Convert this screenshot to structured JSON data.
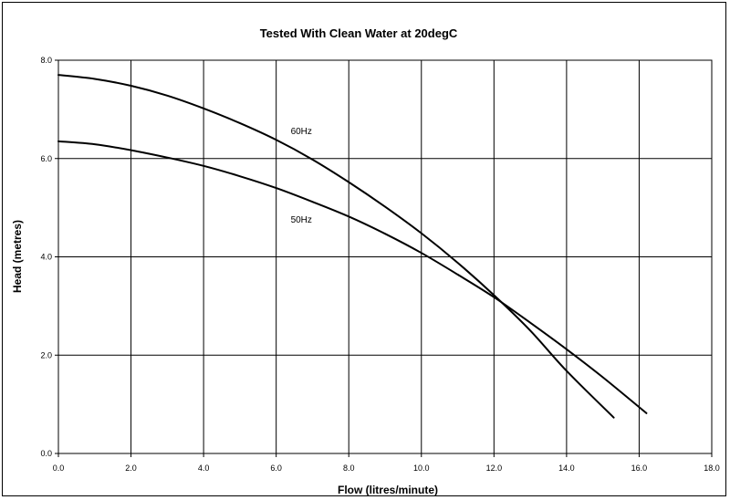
{
  "chart_data": {
    "type": "line",
    "title": "Tested With Clean Water at 20degC",
    "xlabel": "Flow (litres/minute)",
    "ylabel": "Head (metres)",
    "xlim": [
      0,
      18
    ],
    "ylim": [
      0,
      8
    ],
    "x_ticks": [
      "0.0",
      "2.0",
      "4.0",
      "6.0",
      "8.0",
      "10.0",
      "12.0",
      "14.0",
      "16.0",
      "18.0"
    ],
    "y_ticks": [
      "0.0",
      "2.0",
      "4.0",
      "6.0",
      "8.0"
    ],
    "grid": true,
    "legend": "inline labels",
    "series": [
      {
        "name": "60Hz",
        "label_text": "60Hz",
        "label_at": [
          6.4,
          6.5
        ],
        "x": [
          0,
          1,
          2,
          3,
          4,
          5,
          6,
          7,
          8,
          9,
          10,
          11,
          12,
          13,
          14,
          15.3
        ],
        "y": [
          7.7,
          7.62,
          7.48,
          7.28,
          7.02,
          6.72,
          6.38,
          5.98,
          5.52,
          5.02,
          4.48,
          3.88,
          3.22,
          2.5,
          1.68,
          0.73
        ]
      },
      {
        "name": "50Hz",
        "label_text": "50Hz",
        "label_at": [
          6.4,
          4.7
        ],
        "x": [
          0,
          1,
          2,
          3,
          4,
          5,
          6,
          7,
          8,
          9,
          10,
          11,
          12,
          13,
          14,
          15,
          16.2
        ],
        "y": [
          6.35,
          6.29,
          6.17,
          6.02,
          5.85,
          5.64,
          5.4,
          5.12,
          4.82,
          4.47,
          4.08,
          3.64,
          3.18,
          2.66,
          2.12,
          1.55,
          0.82
        ]
      }
    ]
  }
}
